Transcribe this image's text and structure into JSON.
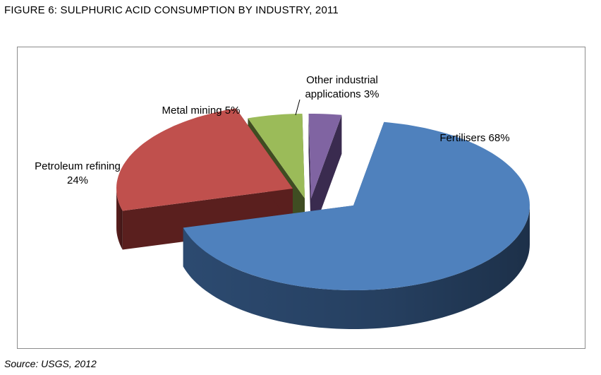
{
  "figure_title": "FIGURE 6: SULPHURIC ACID CONSUMPTION BY INDUSTRY, 2011",
  "source": "Source: USGS, 2012",
  "chart_data": {
    "type": "pie",
    "style": "3d-exploded",
    "title": "",
    "slices": [
      {
        "name": "Fertilisers",
        "value": 68,
        "label_lines": [
          "Fertilisers 68%"
        ],
        "top_color": "#4f81bd",
        "side_color": "#2c4a70"
      },
      {
        "name": "Petroleum refining",
        "value": 24,
        "label_lines": [
          "Petroleum refining",
          "24%"
        ],
        "top_color": "#c0504d",
        "side_color": "#5a1f1e"
      },
      {
        "name": "Metal mining",
        "value": 5,
        "label_lines": [
          "Metal mining 5%"
        ],
        "top_color": "#9bbb59",
        "side_color": "#3f4d22"
      },
      {
        "name": "Other industrial applications",
        "value": 3,
        "label_lines": [
          "Other industrial",
          "applications 3%"
        ],
        "top_color": "#8064a2",
        "side_color": "#3a2b4f"
      }
    ]
  }
}
